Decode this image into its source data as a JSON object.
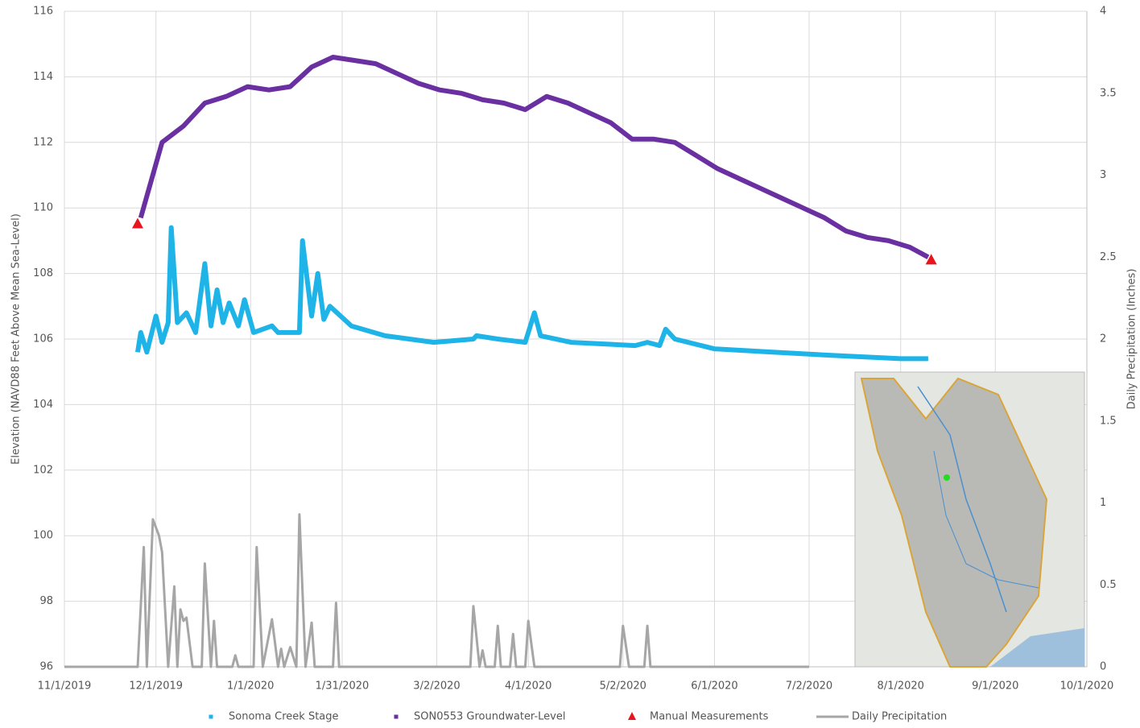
{
  "chart_data": {
    "type": "line",
    "y_label": "Elevation (NAVD88 Feet Above Mean Sea-Level)",
    "y2_label": "Daily Precipitation (Inches)",
    "xlim": [
      "11/1/2019",
      "10/1/2020"
    ],
    "xticks": [
      "11/1/2019",
      "12/1/2019",
      "1/1/2020",
      "1/31/2020",
      "3/2/2020",
      "4/1/2020",
      "5/2/2020",
      "6/1/2020",
      "7/2/2020",
      "8/1/2020",
      "9/1/2020",
      "10/1/2020"
    ],
    "ylim": [
      96,
      116
    ],
    "yticks": [
      96,
      98,
      100,
      102,
      104,
      106,
      108,
      110,
      112,
      114,
      116
    ],
    "y2lim": [
      0,
      4
    ],
    "y2ticks": [
      0,
      0.5,
      1,
      1.5,
      2,
      2.5,
      3,
      3.5,
      4
    ],
    "grid": true,
    "series": [
      {
        "name": "Sonoma Creek Stage",
        "color": "#1fb4e8",
        "type": "line",
        "axis": "y",
        "x": [
          "11/25/2019",
          "11/26/2019",
          "11/28/2019",
          "12/1/2019",
          "12/3/2019",
          "12/5/2019",
          "12/6/2019",
          "12/8/2019",
          "12/11/2019",
          "12/14/2019",
          "12/17/2019",
          "12/19/2019",
          "12/21/2019",
          "12/23/2019",
          "12/25/2019",
          "12/28/2019",
          "12/30/2019",
          "1/2/2020",
          "1/8/2020",
          "1/10/2020",
          "1/17/2020",
          "1/18/2020",
          "1/21/2020",
          "1/23/2020",
          "1/25/2020",
          "1/27/2020",
          "2/3/2020",
          "2/14/2020",
          "3/1/2020",
          "3/14/2020",
          "3/15/2020",
          "3/22/2020",
          "3/31/2020",
          "4/3/2020",
          "4/5/2020",
          "4/15/2020",
          "5/6/2020",
          "5/10/2020",
          "5/14/2020",
          "5/16/2020",
          "5/19/2020",
          "6/1/2020",
          "6/20/2020",
          "7/10/2020",
          "8/1/2020",
          "8/10/2020"
        ],
        "values": [
          105.6,
          106.2,
          105.6,
          106.7,
          105.9,
          106.5,
          109.4,
          106.5,
          106.8,
          106.2,
          108.3,
          106.4,
          107.5,
          106.5,
          107.1,
          106.4,
          107.2,
          106.2,
          106.4,
          106.2,
          106.2,
          109.0,
          106.7,
          108.0,
          106.6,
          107.0,
          106.4,
          106.1,
          105.9,
          106.0,
          106.1,
          106.0,
          105.9,
          106.8,
          106.1,
          105.9,
          105.8,
          105.9,
          105.8,
          106.3,
          106.0,
          105.7,
          105.6,
          105.5,
          105.4,
          105.4
        ]
      },
      {
        "name": "SON0553 Groundwater-Level",
        "color": "#6a2fa0",
        "type": "line",
        "axis": "y",
        "x": [
          "11/26/2019",
          "12/3/2019",
          "12/10/2019",
          "12/17/2019",
          "12/24/2019",
          "12/31/2019",
          "1/7/2020",
          "1/14/2020",
          "1/21/2020",
          "1/28/2020",
          "2/4/2020",
          "2/11/2020",
          "2/18/2020",
          "2/25/2020",
          "3/3/2020",
          "3/10/2020",
          "3/17/2020",
          "3/24/2020",
          "3/31/2020",
          "4/7/2020",
          "4/14/2020",
          "4/21/2020",
          "4/28/2020",
          "5/5/2020",
          "5/12/2020",
          "5/19/2020",
          "5/26/2020",
          "6/2/2020",
          "6/9/2020",
          "6/16/2020",
          "6/23/2020",
          "6/30/2020",
          "7/7/2020",
          "7/14/2020",
          "7/21/2020",
          "7/28/2020",
          "8/4/2020",
          "8/10/2020"
        ],
        "values": [
          109.7,
          112.0,
          112.5,
          113.2,
          113.4,
          113.7,
          113.6,
          113.7,
          114.3,
          114.6,
          114.5,
          114.4,
          114.1,
          113.8,
          113.6,
          113.5,
          113.3,
          113.2,
          113.0,
          113.4,
          113.2,
          112.9,
          112.6,
          112.1,
          112.1,
          112.0,
          111.6,
          111.2,
          110.9,
          110.6,
          110.3,
          110.0,
          109.7,
          109.3,
          109.1,
          109.0,
          108.8,
          108.5
        ]
      },
      {
        "name": "Manual Measurements",
        "color": "#e8141e",
        "type": "scatter",
        "axis": "y",
        "x": [
          "11/25/2019",
          "8/11/2020"
        ],
        "values": [
          109.5,
          108.4
        ]
      },
      {
        "name": "Daily Precipitation",
        "color": "#a6a6a6",
        "type": "line",
        "axis": "y2",
        "x": [
          "11/1/2019",
          "11/25/2019",
          "11/27/2019",
          "11/28/2019",
          "11/30/2019",
          "12/2/2019",
          "12/3/2019",
          "12/5/2019",
          "12/7/2019",
          "12/8/2019",
          "12/9/2019",
          "12/10/2019",
          "12/11/2019",
          "12/13/2019",
          "12/16/2019",
          "12/17/2019",
          "12/19/2019",
          "12/20/2019",
          "12/21/2019",
          "12/26/2019",
          "12/27/2019",
          "12/28/2019",
          "1/2/2020",
          "1/3/2020",
          "1/5/2020",
          "1/8/2020",
          "1/10/2020",
          "1/11/2020",
          "1/12/2020",
          "1/14/2020",
          "1/16/2020",
          "1/17/2020",
          "1/19/2020",
          "1/21/2020",
          "1/22/2020",
          "1/28/2020",
          "1/29/2020",
          "1/30/2020",
          "3/13/2020",
          "3/14/2020",
          "3/16/2020",
          "3/17/2020",
          "3/18/2020",
          "3/21/2020",
          "3/22/2020",
          "3/23/2020",
          "3/26/2020",
          "3/27/2020",
          "3/28/2020",
          "3/31/2020",
          "4/1/2020",
          "4/3/2020",
          "5/1/2020",
          "5/2/2020",
          "5/4/2020",
          "5/9/2020",
          "5/10/2020",
          "5/11/2020",
          "7/2/2020"
        ],
        "values": [
          0,
          0,
          0.73,
          0,
          0.9,
          0.8,
          0.7,
          0,
          0.49,
          0,
          0.35,
          0.28,
          0.3,
          0,
          0,
          0.63,
          0,
          0.28,
          0,
          0,
          0.07,
          0,
          0,
          0.73,
          0,
          0.29,
          0,
          0.11,
          0,
          0.12,
          0,
          0.93,
          0,
          0.27,
          0,
          0,
          0.39,
          0,
          0,
          0.37,
          0,
          0.1,
          0,
          0,
          0.25,
          0,
          0,
          0.2,
          0,
          0,
          0.28,
          0,
          0,
          0.25,
          0,
          0,
          0.25,
          0,
          0
        ]
      }
    ]
  }
}
